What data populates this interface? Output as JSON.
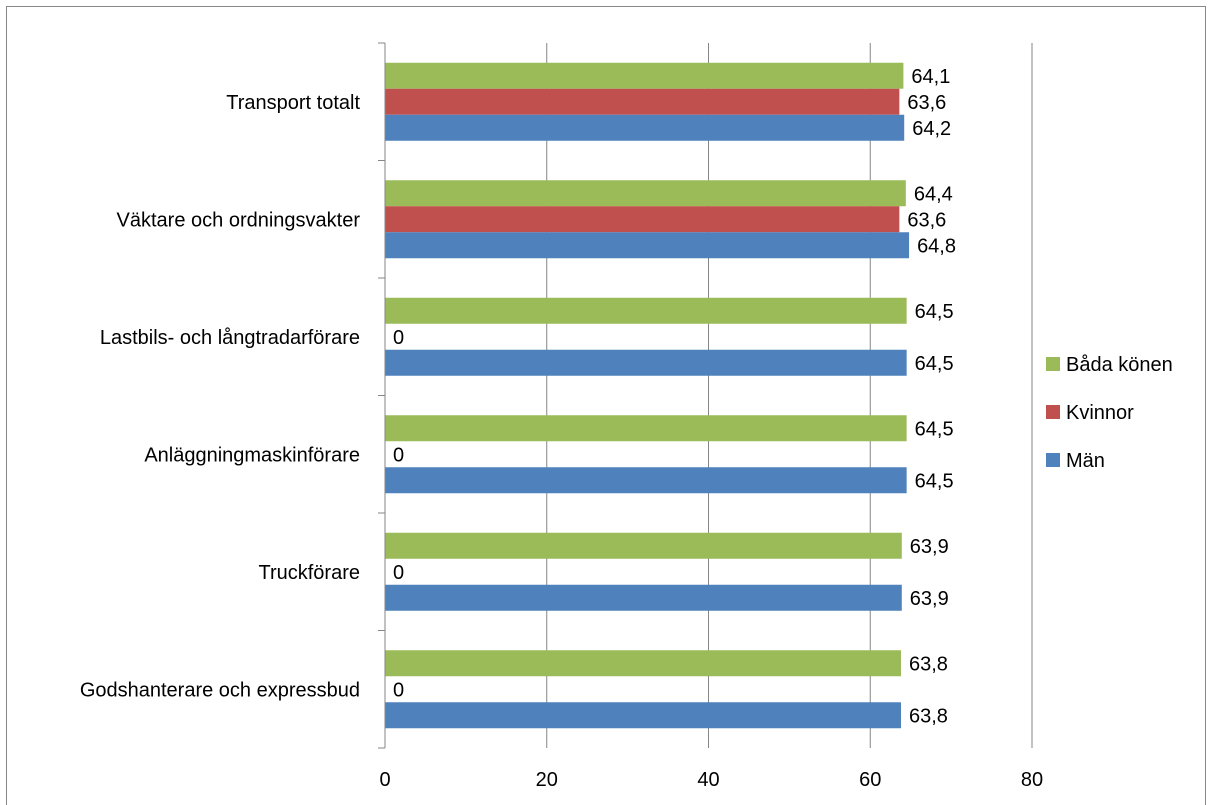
{
  "chart_data": {
    "type": "bar",
    "orientation": "horizontal",
    "categories": [
      "Transport totalt",
      "Väktare och ordningsvakter",
      "Lastbils- och långtradarförare",
      "Anläggningmaskinförare",
      "Truckförare",
      "Godshanterare och expressbud"
    ],
    "series": [
      {
        "name": "Båda könen",
        "color": "#9BBB59",
        "values": [
          64.1,
          64.4,
          64.5,
          64.5,
          63.9,
          63.8
        ],
        "labels": [
          "64,1",
          "64,4",
          "64,5",
          "64,5",
          "63,9",
          "63,8"
        ]
      },
      {
        "name": "Kvinnor",
        "color": "#C0504D",
        "values": [
          63.6,
          63.6,
          0,
          0,
          0,
          0
        ],
        "labels": [
          "63,6",
          "63,6",
          "0",
          "0",
          "0",
          "0"
        ]
      },
      {
        "name": "Män",
        "color": "#4F81BD",
        "values": [
          64.2,
          64.8,
          64.5,
          64.5,
          63.9,
          63.8
        ],
        "labels": [
          "64,2",
          "64,8",
          "64,5",
          "64,5",
          "63,9",
          "63,8"
        ]
      }
    ],
    "xlim": [
      0,
      80
    ],
    "xticks": [
      "0",
      "20",
      "40",
      "60",
      "80"
    ],
    "xgrid": true,
    "legend": {
      "position": "right",
      "items": [
        {
          "name": "Båda könen",
          "color": "#9BBB59"
        },
        {
          "name": "Kvinnor",
          "color": "#C0504D"
        },
        {
          "name": "Män",
          "color": "#4F81BD"
        }
      ]
    },
    "title": "",
    "xlabel": "",
    "ylabel": ""
  }
}
